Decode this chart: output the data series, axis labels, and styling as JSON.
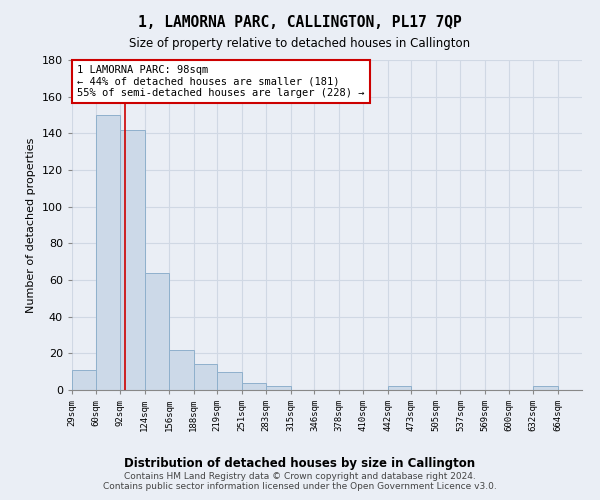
{
  "title": "1, LAMORNA PARC, CALLINGTON, PL17 7QP",
  "subtitle": "Size of property relative to detached houses in Callington",
  "xlabel": "Distribution of detached houses by size in Callington",
  "ylabel": "Number of detached properties",
  "footnote1": "Contains HM Land Registry data © Crown copyright and database right 2024.",
  "footnote2": "Contains public sector information licensed under the Open Government Licence v3.0.",
  "bar_edges": [
    29,
    60,
    92,
    124,
    156,
    188,
    219,
    251,
    283,
    315,
    346,
    378,
    410,
    442,
    473,
    505,
    537,
    569,
    600,
    632,
    664
  ],
  "bar_heights": [
    11,
    150,
    142,
    64,
    22,
    14,
    10,
    4,
    2,
    0,
    0,
    0,
    0,
    2,
    0,
    0,
    0,
    0,
    0,
    2,
    0
  ],
  "tick_labels": [
    "29sqm",
    "60sqm",
    "92sqm",
    "124sqm",
    "156sqm",
    "188sqm",
    "219sqm",
    "251sqm",
    "283sqm",
    "315sqm",
    "346sqm",
    "378sqm",
    "410sqm",
    "442sqm",
    "473sqm",
    "505sqm",
    "537sqm",
    "569sqm",
    "600sqm",
    "632sqm",
    "664sqm"
  ],
  "bar_color": "#ccd9e8",
  "bar_edgecolor": "#8fb0cc",
  "background_color": "#eaeef5",
  "grid_color": "#d8dfe8",
  "red_line_x": 98,
  "annotation_text": "1 LAMORNA PARC: 98sqm\n← 44% of detached houses are smaller (181)\n55% of semi-detached houses are larger (228) →",
  "annotation_box_color": "#ffffff",
  "annotation_box_edgecolor": "#cc0000",
  "ylim": [
    0,
    180
  ],
  "yticks": [
    0,
    20,
    40,
    60,
    80,
    100,
    120,
    140,
    160,
    180
  ]
}
